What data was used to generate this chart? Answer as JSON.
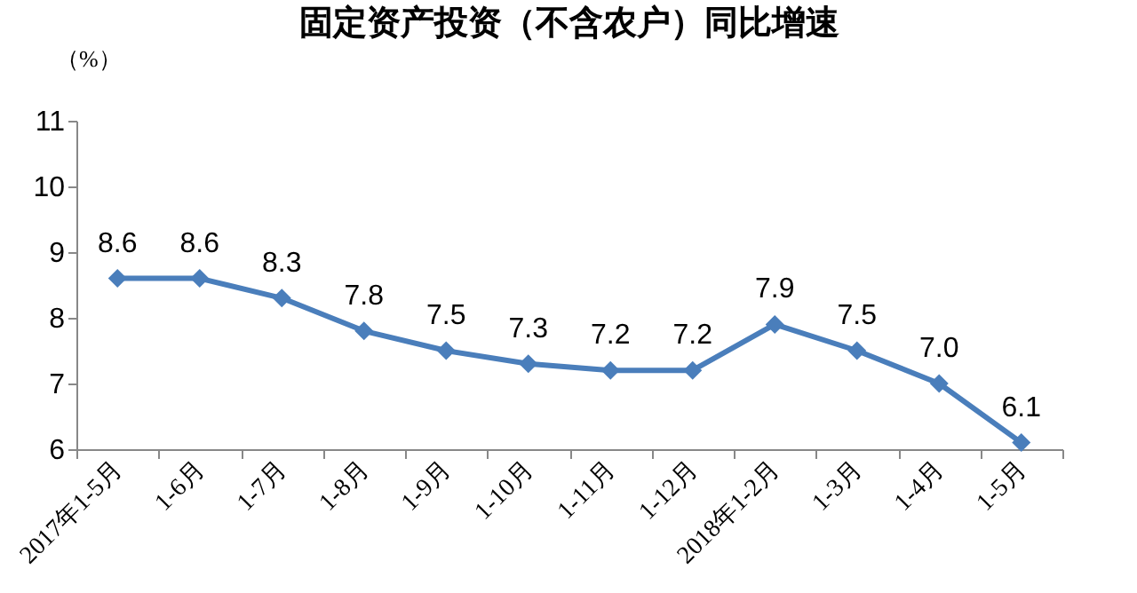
{
  "chart_data": {
    "type": "line",
    "title": "固定资产投资（不含农户）同比增速",
    "ylabel": "（%）",
    "categories": [
      "2017年1-5月",
      "1-6月",
      "1-7月",
      "1-8月",
      "1-9月",
      "1-10月",
      "1-11月",
      "1-12月",
      "2018年1-2月",
      "1-3月",
      "1-4月",
      "1-5月"
    ],
    "series": [
      {
        "color": "#4a7ebb",
        "values": [
          8.6,
          8.6,
          8.3,
          7.8,
          7.5,
          7.3,
          7.2,
          7.2,
          7.9,
          7.5,
          7.0,
          6.1
        ]
      }
    ],
    "value_labels": [
      "8.6",
      "8.6",
      "8.3",
      "7.8",
      "7.5",
      "7.3",
      "7.2",
      "7.2",
      "7.9",
      "7.5",
      "7.0",
      "6.1"
    ],
    "ylim": [
      6,
      11
    ],
    "yticks": [
      6,
      7,
      8,
      9,
      10,
      11
    ],
    "grid": false,
    "legend": false,
    "marker": "diamond",
    "line_style": "solid"
  }
}
